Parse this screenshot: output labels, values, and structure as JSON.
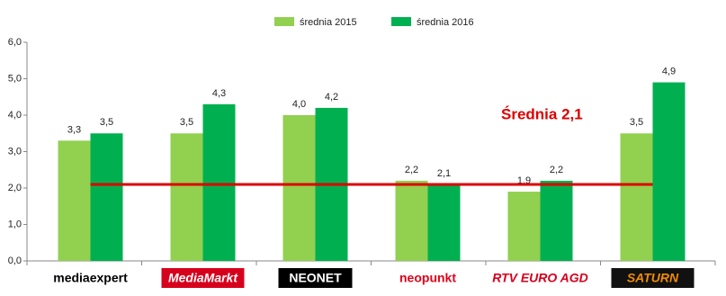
{
  "chart_data": {
    "type": "bar",
    "categories": [
      "mediaexpert",
      "MediaMarkt",
      "NEONET",
      "neopunkt",
      "RTV EURO AGD",
      "SATURN"
    ],
    "series": [
      {
        "name": "średnia 2015",
        "color": "#92d050",
        "values": [
          3.3,
          3.5,
          4.0,
          2.2,
          1.9,
          3.5
        ],
        "value_labels": [
          "3,3",
          "3,5",
          "4,0",
          "2,2",
          "1,9",
          "3,5"
        ]
      },
      {
        "name": "średnia 2016",
        "color": "#00b050",
        "values": [
          3.5,
          4.3,
          4.2,
          2.1,
          2.2,
          4.9
        ],
        "value_labels": [
          "3,5",
          "4,3",
          "4,2",
          "2,1",
          "2,2",
          "4,9"
        ]
      }
    ],
    "ylim": [
      0,
      6
    ],
    "yticks": [
      {
        "value": 0,
        "label": "0,0"
      },
      {
        "value": 1,
        "label": "1,0"
      },
      {
        "value": 2,
        "label": "2,0"
      },
      {
        "value": 3,
        "label": "3,0"
      },
      {
        "value": 4,
        "label": "4,0"
      },
      {
        "value": 5,
        "label": "5,0"
      },
      {
        "value": 6,
        "label": "6,0"
      }
    ],
    "reference_line": {
      "value": 2.1,
      "label": "Średnia 2,1",
      "color": "#dd0000"
    }
  }
}
